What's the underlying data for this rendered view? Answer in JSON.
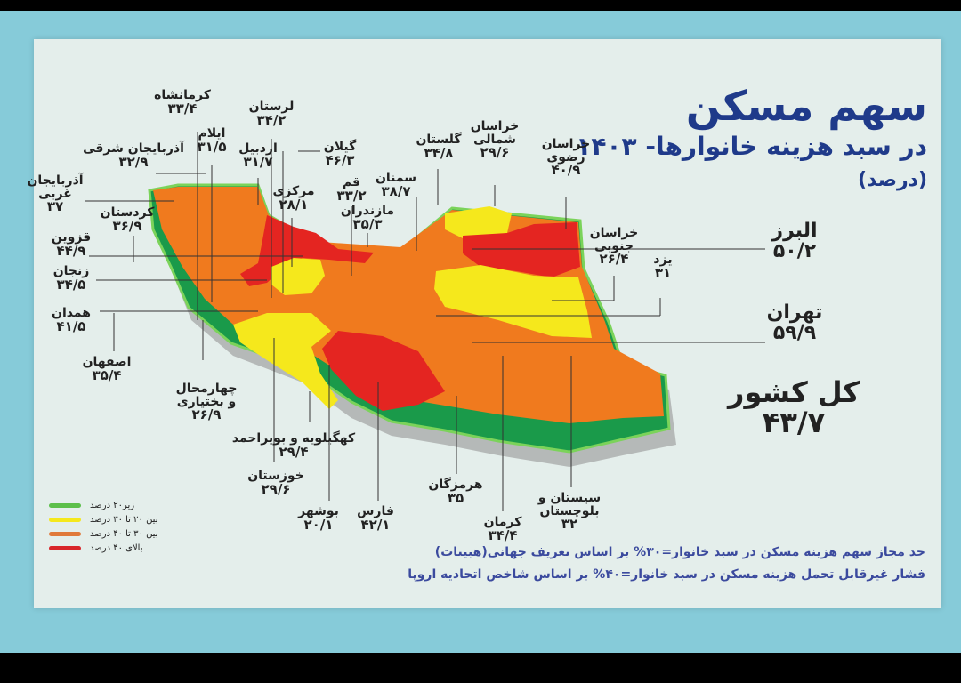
{
  "title": "سهم مسکن",
  "subtitle": "در سبد هزینه خانوارها- ۱۴۰۳",
  "unit": "(درصد)",
  "colors": {
    "green": "#1a9a4a",
    "yellow": "#f5e81c",
    "orange": "#f07a1e",
    "red": "#e42521",
    "title": "#1f3a8a"
  },
  "provinces": [
    {
      "name": "کرمانشاه",
      "value": "۳۳/۴"
    },
    {
      "name": "لرستان",
      "value": "۳۴/۲"
    },
    {
      "name": "گیلان",
      "value": "۴۶/۳"
    },
    {
      "name": "ایلام",
      "value": "۳۱/۵"
    },
    {
      "name": "اردبیل",
      "value": "۳۱/۷"
    },
    {
      "name": "آذربایجان شرقی",
      "value": "۳۲/۹"
    },
    {
      "name": "آذربایجان غربی",
      "value": "۳۷"
    },
    {
      "name": "کردستان",
      "value": "۳۶/۹"
    },
    {
      "name": "قزوین",
      "value": "۴۴/۹"
    },
    {
      "name": "زنجان",
      "value": "۳۴/۵"
    },
    {
      "name": "همدان",
      "value": "۴۱/۵"
    },
    {
      "name": "اصفهان",
      "value": "۳۵/۴"
    },
    {
      "name": "چهارمحال و بختیاری",
      "value": "۲۶/۹"
    },
    {
      "name": "کهگیلویه و بویراحمد",
      "value": "۲۹/۴"
    },
    {
      "name": "خوزستان",
      "value": "۲۹/۶"
    },
    {
      "name": "بوشهر",
      "value": "۲۰/۱"
    },
    {
      "name": "فارس",
      "value": "۴۲/۱"
    },
    {
      "name": "هرمزگان",
      "value": "۳۵"
    },
    {
      "name": "کرمان",
      "value": "۳۴/۴"
    },
    {
      "name": "سیستان و بلوچستان",
      "value": "۳۲"
    },
    {
      "name": "قم",
      "value": "۳۳/۲"
    },
    {
      "name": "مرکزی",
      "value": "۲۸/۱"
    },
    {
      "name": "مازندران",
      "value": "۳۵/۳"
    },
    {
      "name": "سمنان",
      "value": "۳۸/۷"
    },
    {
      "name": "گلستان",
      "value": "۳۴/۸"
    },
    {
      "name": "خراسان شمالی",
      "value": "۲۹/۶"
    },
    {
      "name": "خراسان رضوی",
      "value": "۴۰/۹"
    },
    {
      "name": "خراسان جنوبی",
      "value": "۲۶/۴"
    },
    {
      "name": "یزد",
      "value": "۳۱"
    },
    {
      "name": "البرز",
      "value": "۵۰/۲"
    },
    {
      "name": "تهران",
      "value": "۵۹/۹"
    }
  ],
  "total": {
    "name": "کل کشور",
    "value": "۴۳/۷"
  },
  "legend": [
    {
      "label": "زیر۲۰ درصد",
      "color": "#5cbf4a"
    },
    {
      "label": "بین ۲۰ تا ۳۰ درصد",
      "color": "#f5e81c"
    },
    {
      "label": "بین ۳۰ تا ۴۰ درصد",
      "color": "#e0793a"
    },
    {
      "label": "بالای ۴۰ درصد",
      "color": "#d8262a"
    }
  ],
  "notes": [
    "حد مجاز سهم هزینه مسکن در سبد خانوار=۳۰% بر اساس تعریف جهانی(هبیتات)",
    "فشار غیرقابل تحمل هزینه مسکن در سبد خانوار=۴۰% بر اساس شاخص اتحادیه اروپا"
  ]
}
